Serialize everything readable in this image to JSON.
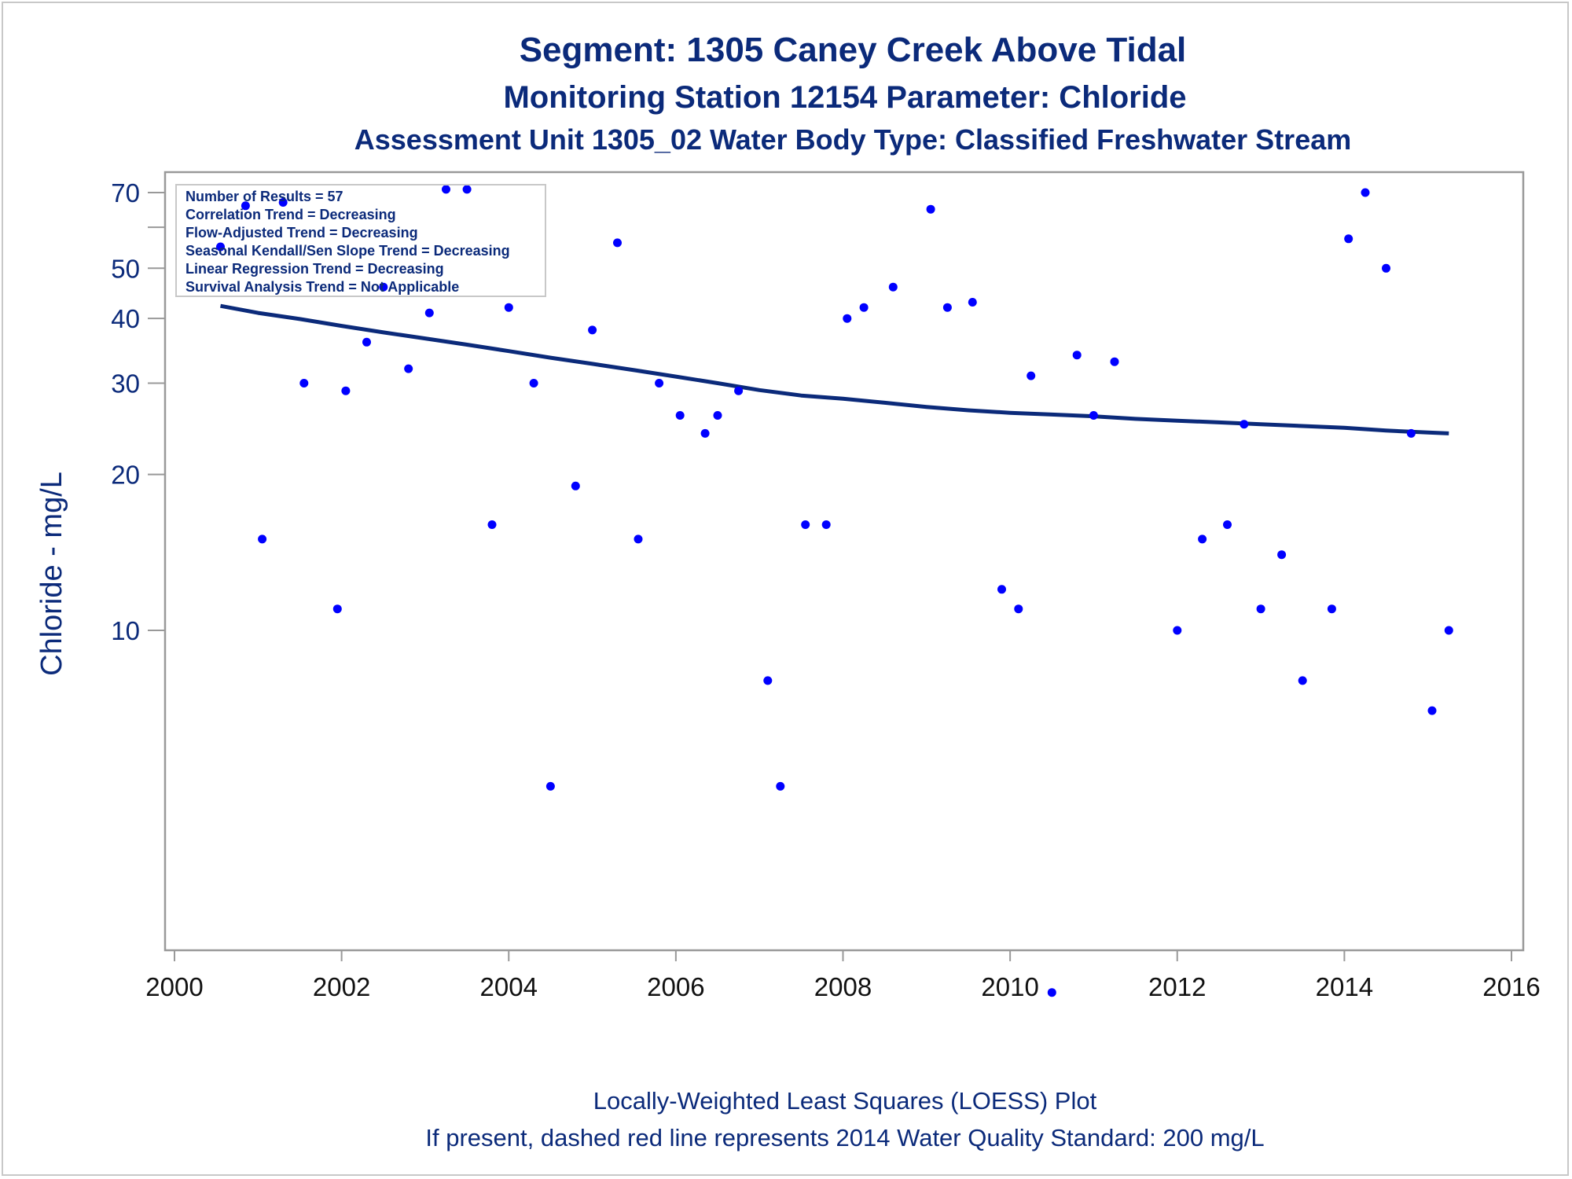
{
  "chart_data": {
    "type": "scatter",
    "title": "Segment: 1305  Caney Creek Above Tidal",
    "subtitle": "Monitoring Station 12154 Parameter: Chloride",
    "subtitle2": "Assessment Unit 1305_02   Water Body Type: Classified Freshwater Stream",
    "xlabel": "",
    "ylabel": "Chloride - mg/L",
    "x_ticks": [
      "2000",
      "2002",
      "2004",
      "2006",
      "2008",
      "2010",
      "2012",
      "2014",
      "2016"
    ],
    "y_ticks": [
      "10",
      "20",
      "30",
      "40",
      "50",
      "70"
    ],
    "xlim": [
      2000,
      2016
    ],
    "ylim": [
      2,
      75
    ],
    "y_scale": "log",
    "grid": false,
    "stats_box": {
      "placement": "top-left",
      "lines": [
        "Number of Results = 57",
        "Correlation Trend = Decreasing",
        "Flow-Adjusted Trend = Decreasing",
        "Seasonal Kendall/Sen Slope Trend = Decreasing",
        "Linear Regression Trend = Decreasing",
        "Survival Analysis Trend = Not Applicable"
      ]
    },
    "points": [
      [
        2000.55,
        55
      ],
      [
        2000.85,
        66
      ],
      [
        2001.05,
        15
      ],
      [
        2001.3,
        67
      ],
      [
        2001.55,
        30
      ],
      [
        2001.95,
        11
      ],
      [
        2002.05,
        29
      ],
      [
        2002.3,
        36
      ],
      [
        2002.5,
        46
      ],
      [
        2002.8,
        32
      ],
      [
        2003.05,
        41
      ],
      [
        2003.25,
        71
      ],
      [
        2003.5,
        71
      ],
      [
        2003.8,
        16
      ],
      [
        2004.0,
        42
      ],
      [
        2004.3,
        30
      ],
      [
        2004.5,
        5
      ],
      [
        2004.8,
        19
      ],
      [
        2005.0,
        38
      ],
      [
        2005.3,
        56
      ],
      [
        2005.55,
        15
      ],
      [
        2005.8,
        30
      ],
      [
        2006.05,
        26
      ],
      [
        2006.35,
        24
      ],
      [
        2006.5,
        26
      ],
      [
        2006.75,
        29
      ],
      [
        2007.1,
        8
      ],
      [
        2007.25,
        5
      ],
      [
        2007.55,
        16
      ],
      [
        2007.8,
        16
      ],
      [
        2008.05,
        40
      ],
      [
        2008.25,
        42
      ],
      [
        2008.6,
        46
      ],
      [
        2009.05,
        65
      ],
      [
        2009.25,
        42
      ],
      [
        2009.55,
        43
      ],
      [
        2009.9,
        12
      ],
      [
        2010.1,
        11
      ],
      [
        2010.25,
        31
      ],
      [
        2010.5,
        2
      ],
      [
        2010.8,
        34
      ],
      [
        2011.0,
        26
      ],
      [
        2011.25,
        33
      ],
      [
        2012.0,
        10
      ],
      [
        2012.3,
        15
      ],
      [
        2012.6,
        16
      ],
      [
        2012.8,
        25
      ],
      [
        2013.0,
        11
      ],
      [
        2013.25,
        14
      ],
      [
        2013.5,
        8
      ],
      [
        2013.85,
        11
      ],
      [
        2014.05,
        57
      ],
      [
        2014.25,
        70
      ],
      [
        2014.5,
        50
      ],
      [
        2014.8,
        24
      ],
      [
        2015.05,
        7
      ],
      [
        2015.25,
        10
      ]
    ],
    "loess": [
      [
        2000.55,
        42.3
      ],
      [
        2001.0,
        41.0
      ],
      [
        2001.5,
        39.9
      ],
      [
        2002.0,
        38.7
      ],
      [
        2002.5,
        37.6
      ],
      [
        2003.0,
        36.6
      ],
      [
        2003.5,
        35.6
      ],
      [
        2004.0,
        34.6
      ],
      [
        2004.5,
        33.6
      ],
      [
        2005.0,
        32.7
      ],
      [
        2005.5,
        31.8
      ],
      [
        2006.0,
        30.9
      ],
      [
        2006.5,
        30.0
      ],
      [
        2007.0,
        29.1
      ],
      [
        2007.5,
        28.4
      ],
      [
        2008.0,
        28.0
      ],
      [
        2008.5,
        27.5
      ],
      [
        2009.0,
        27.0
      ],
      [
        2009.5,
        26.6
      ],
      [
        2010.0,
        26.3
      ],
      [
        2010.5,
        26.1
      ],
      [
        2011.0,
        25.9
      ],
      [
        2011.5,
        25.6
      ],
      [
        2012.0,
        25.4
      ],
      [
        2012.5,
        25.2
      ],
      [
        2013.0,
        25.0
      ],
      [
        2013.5,
        24.8
      ],
      [
        2014.0,
        24.6
      ],
      [
        2014.5,
        24.3
      ],
      [
        2015.0,
        24.1
      ],
      [
        2015.25,
        24.0
      ]
    ],
    "colors": {
      "point": "#0000ff",
      "line": "#0b2a7a",
      "text": "#0b2a7a",
      "frame": "#999999"
    }
  },
  "footer": {
    "line1": "Locally-Weighted Least Squares (LOESS) Plot",
    "line2": "If present, dashed red line represents 2014 Water Quality Standard: 200    mg/L"
  }
}
